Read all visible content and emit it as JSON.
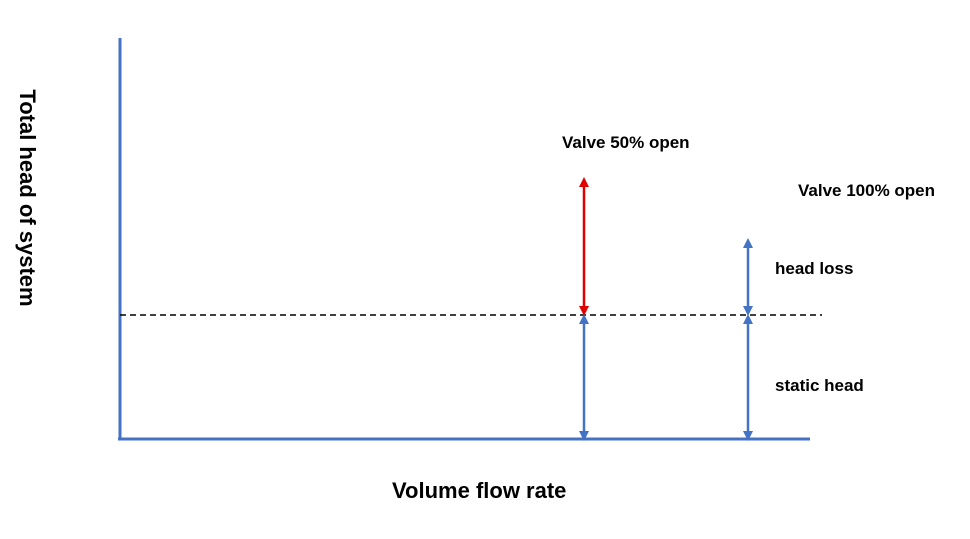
{
  "labels": {
    "valve_50": "Valve 50% open",
    "valve_100": "Valve 100% open",
    "head_loss": "head loss",
    "static_head": "static head",
    "x_axis": "Volume flow rate",
    "y_axis": "Total head of system"
  },
  "colors": {
    "axis": "#4472C4",
    "arrow_blue": "#4472C4",
    "arrow_red": "#E00000",
    "dashed_line": "#000000"
  }
}
